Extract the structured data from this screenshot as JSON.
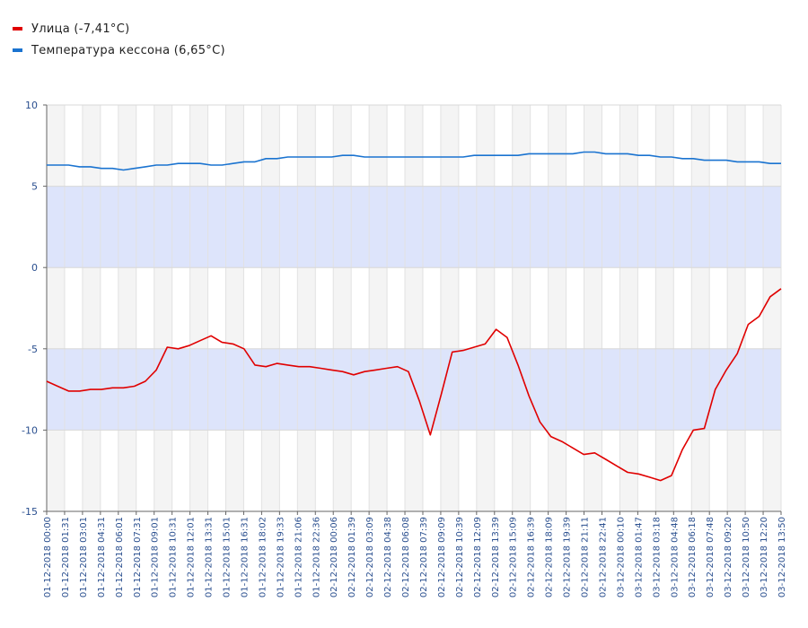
{
  "legend": [
    {
      "label": "Улица (-7,41°C)",
      "color": "#e00000"
    },
    {
      "label": "Температура кессона (6,65°C)",
      "color": "#1a73d0"
    }
  ],
  "chart_data": {
    "type": "line",
    "title": "",
    "xlabel": "",
    "ylabel": "",
    "ylim": [
      -15,
      10
    ],
    "y_ticks": [
      10,
      5,
      0,
      -5,
      -10,
      -15
    ],
    "grid": true,
    "legend_position": "top-left",
    "band_color": "#dde4fb",
    "alt_column_color": "#f4f4f4",
    "x_ticks": [
      "01-12-2018 00:00",
      "01-12-2018 01:31",
      "01-12-2018 03:01",
      "01-12-2018 04:31",
      "01-12-2018 06:01",
      "01-12-2018 07:31",
      "01-12-2018 09:01",
      "01-12-2018 10:31",
      "01-12-2018 12:01",
      "01-12-2018 13:31",
      "01-12-2018 15:01",
      "01-12-2018 16:31",
      "01-12-2018 18:02",
      "01-12-2018 19:33",
      "01-12-2018 21:06",
      "01-12-2018 22:36",
      "02-12-2018 00:06",
      "02-12-2018 01:39",
      "02-12-2018 03:09",
      "02-12-2018 04:38",
      "02-12-2018 06:08",
      "02-12-2018 07:39",
      "02-12-2018 09:09",
      "02-12-2018 10:39",
      "02-12-2018 12:09",
      "02-12-2018 13:39",
      "02-12-2018 15:09",
      "02-12-2018 16:39",
      "02-12-2018 18:09",
      "02-12-2018 19:39",
      "02-12-2018 21:11",
      "02-12-2018 22:41",
      "03-12-2018 00:10",
      "03-12-2018 01:47",
      "03-12-2018 03:18",
      "03-12-2018 04:48",
      "03-12-2018 06:18",
      "03-12-2018 07:48",
      "03-12-2018 09:20",
      "03-12-2018 10:50",
      "03-12-2018 12:20",
      "03-12-2018 13:50"
    ],
    "series": [
      {
        "name": "Улица (-7,41°C)",
        "color": "#e00000",
        "values": [
          -7.0,
          -7.3,
          -7.6,
          -7.6,
          -7.5,
          -7.5,
          -7.4,
          -7.4,
          -7.3,
          -7.0,
          -6.3,
          -4.9,
          -5.0,
          -4.8,
          -4.5,
          -4.2,
          -4.6,
          -4.7,
          -5.0,
          -6.0,
          -6.1,
          -5.9,
          -6.0,
          -6.1,
          -6.1,
          -6.2,
          -6.3,
          -6.4,
          -6.6,
          -6.4,
          -6.3,
          -6.2,
          -6.1,
          -6.4,
          -8.2,
          -10.3,
          -7.8,
          -5.2,
          -5.1,
          -4.9,
          -4.7,
          -3.8,
          -4.3,
          -6.0,
          -7.9,
          -9.5,
          -10.4,
          -10.7,
          -11.1,
          -11.5,
          -11.4,
          -11.8,
          -12.2,
          -12.6,
          -12.7,
          -12.9,
          -13.1,
          -12.8,
          -11.2,
          -10.0,
          -9.9,
          -7.5,
          -6.3,
          -5.3,
          -3.5,
          -3.0,
          -1.8,
          -1.3
        ],
        "values_note": ""
      },
      {
        "name": "Температура кессона (6,65°C)",
        "color": "#1a73d0",
        "values": [
          6.3,
          6.3,
          6.3,
          6.2,
          6.2,
          6.1,
          6.1,
          6.0,
          6.1,
          6.2,
          6.3,
          6.3,
          6.4,
          6.4,
          6.4,
          6.3,
          6.3,
          6.4,
          6.5,
          6.5,
          6.7,
          6.7,
          6.8,
          6.8,
          6.8,
          6.8,
          6.8,
          6.9,
          6.9,
          6.8,
          6.8,
          6.8,
          6.8,
          6.8,
          6.8,
          6.8,
          6.8,
          6.8,
          6.8,
          6.9,
          6.9,
          6.9,
          6.9,
          6.9,
          7.0,
          7.0,
          7.0,
          7.0,
          7.0,
          7.1,
          7.1,
          7.0,
          7.0,
          7.0,
          6.9,
          6.9,
          6.8,
          6.8,
          6.7,
          6.7,
          6.6,
          6.6,
          6.6,
          6.5,
          6.5,
          6.5,
          6.4,
          6.4
        ]
      }
    ]
  }
}
